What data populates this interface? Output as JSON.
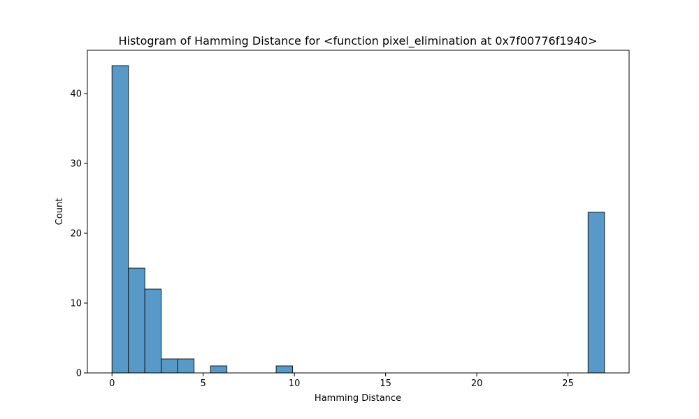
{
  "chart_data": {
    "type": "bar",
    "title": "Histogram of Hamming Distance for <function pixel_elimination at 0x7f00776f1940>",
    "xlabel": "Hamming Distance",
    "ylabel": "Count",
    "xlim": [
      -1.35,
      28.35
    ],
    "ylim": [
      0,
      46.2
    ],
    "xticks": [
      0,
      5,
      10,
      15,
      20,
      25
    ],
    "yticks": [
      0,
      10,
      20,
      30,
      40
    ],
    "bin_width": 0.9,
    "bins": [
      {
        "x0": 0.0,
        "count": 44
      },
      {
        "x0": 0.9,
        "count": 15
      },
      {
        "x0": 1.8,
        "count": 12
      },
      {
        "x0": 2.7,
        "count": 2
      },
      {
        "x0": 3.6,
        "count": 2
      },
      {
        "x0": 4.5,
        "count": 0
      },
      {
        "x0": 5.4,
        "count": 1
      },
      {
        "x0": 6.3,
        "count": 0
      },
      {
        "x0": 7.2,
        "count": 0
      },
      {
        "x0": 8.1,
        "count": 0
      },
      {
        "x0": 9.0,
        "count": 1
      },
      {
        "x0": 9.9,
        "count": 0
      },
      {
        "x0": 10.8,
        "count": 0
      },
      {
        "x0": 11.7,
        "count": 0
      },
      {
        "x0": 12.6,
        "count": 0
      },
      {
        "x0": 13.5,
        "count": 0
      },
      {
        "x0": 14.4,
        "count": 0
      },
      {
        "x0": 15.3,
        "count": 0
      },
      {
        "x0": 16.2,
        "count": 0
      },
      {
        "x0": 17.1,
        "count": 0
      },
      {
        "x0": 18.0,
        "count": 0
      },
      {
        "x0": 18.9,
        "count": 0
      },
      {
        "x0": 19.8,
        "count": 0
      },
      {
        "x0": 20.7,
        "count": 0
      },
      {
        "x0": 21.6,
        "count": 0
      },
      {
        "x0": 22.5,
        "count": 0
      },
      {
        "x0": 23.4,
        "count": 0
      },
      {
        "x0": 24.3,
        "count": 0
      },
      {
        "x0": 25.2,
        "count": 0
      },
      {
        "x0": 26.1,
        "count": 23
      }
    ],
    "bar_color": "#5799c7",
    "edge_color": "#1a1a1a",
    "grid": false,
    "legend": false
  }
}
